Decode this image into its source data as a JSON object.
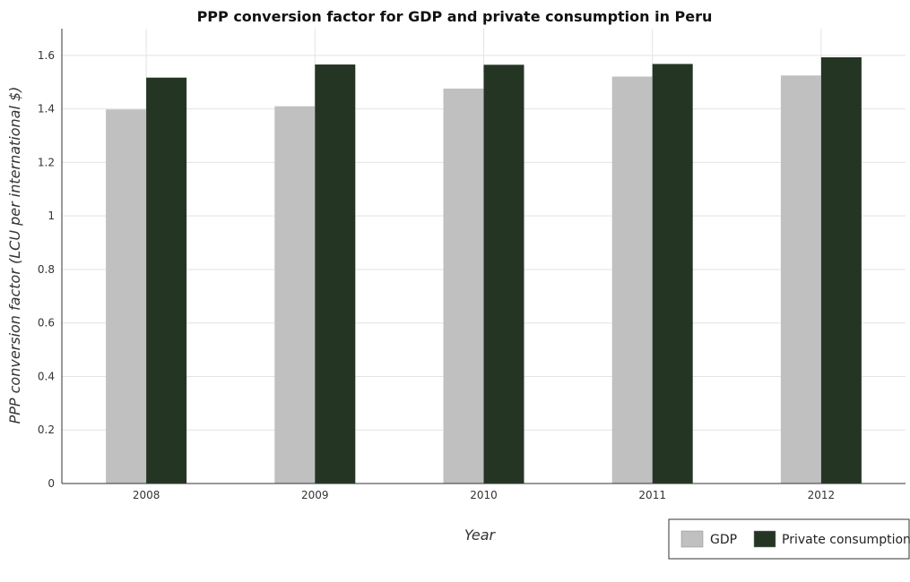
{
  "chart_data": {
    "type": "bar",
    "title": "PPP conversion factor for GDP and private consumption in Peru",
    "xlabel": "Year",
    "ylabel": "PPP conversion factor (LCU per international $)",
    "categories": [
      "2008",
      "2009",
      "2010",
      "2011",
      "2012"
    ],
    "series": [
      {
        "name": "GDP",
        "color": "#c0c0c0",
        "values": [
          1.398,
          1.41,
          1.476,
          1.521,
          1.525
        ]
      },
      {
        "name": " Private consumption",
        "color": "#243524",
        "values": [
          1.517,
          1.566,
          1.565,
          1.568,
          1.593
        ]
      }
    ],
    "ylim": [
      0,
      1.7
    ],
    "yticks": [
      0,
      0.2,
      0.4,
      0.6,
      0.8,
      1,
      1.2,
      1.4,
      1.6
    ],
    "ytick_labels": [
      "0",
      "0.2",
      "0.4",
      "0.6",
      "0.8",
      "1",
      "1.2",
      "1.4",
      "1.6"
    ],
    "grid": true,
    "legend_position": "bottom-right"
  }
}
